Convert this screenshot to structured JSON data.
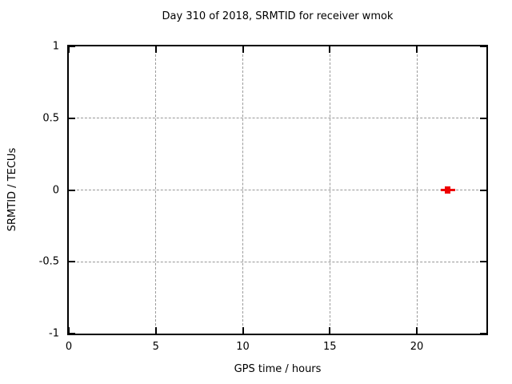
{
  "chart_data": {
    "type": "scatter",
    "title": "Day 310 of 2018, SRMTID for receiver wmok",
    "xlabel": "GPS time / hours",
    "ylabel": "SRMTID / TECUs",
    "xlim": [
      0,
      24
    ],
    "ylim": [
      -1,
      1
    ],
    "xticks": [
      0,
      5,
      10,
      15,
      20
    ],
    "yticks": [
      -1,
      -0.5,
      0,
      0.5,
      1
    ],
    "grid": true,
    "legend": "none",
    "series": [
      {
        "name": "SRMTID",
        "marker": "filled-square-with-horizontal-bar",
        "color": "#ee0000",
        "points": [
          {
            "x": 21.8,
            "y": 0.0
          }
        ]
      }
    ]
  },
  "colors": {
    "background": "#ffffff",
    "border": "#000000",
    "grid": "#999999",
    "text": "#000000",
    "marker": "#ee0000"
  }
}
